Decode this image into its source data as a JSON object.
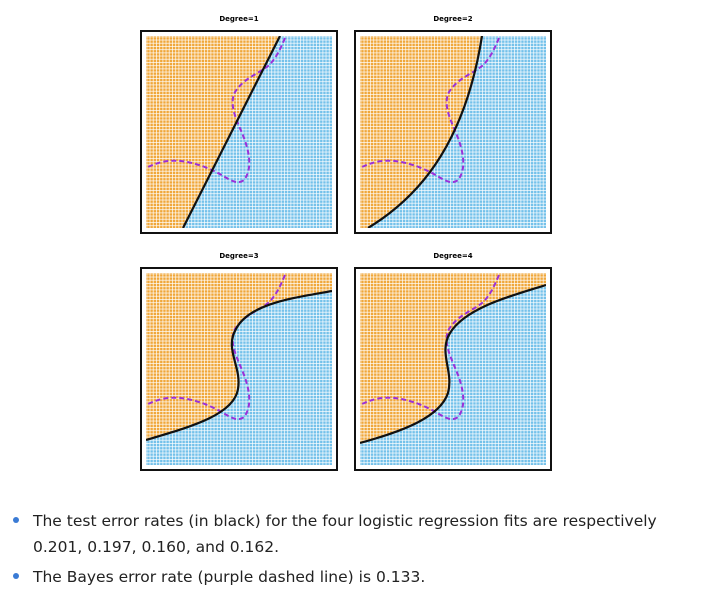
{
  "panels": [
    {
      "title": "Degree=1"
    },
    {
      "title": "Degree=2"
    },
    {
      "title": "Degree=3"
    },
    {
      "title": "Degree=4"
    }
  ],
  "bullets": [
    "The test error rates (in black) for the four logistic regression fits are respectively 0.201, 0.197, 0.160, and 0.162.",
    "The Bayes error rate (purple dashed line) is 0.133."
  ]
}
